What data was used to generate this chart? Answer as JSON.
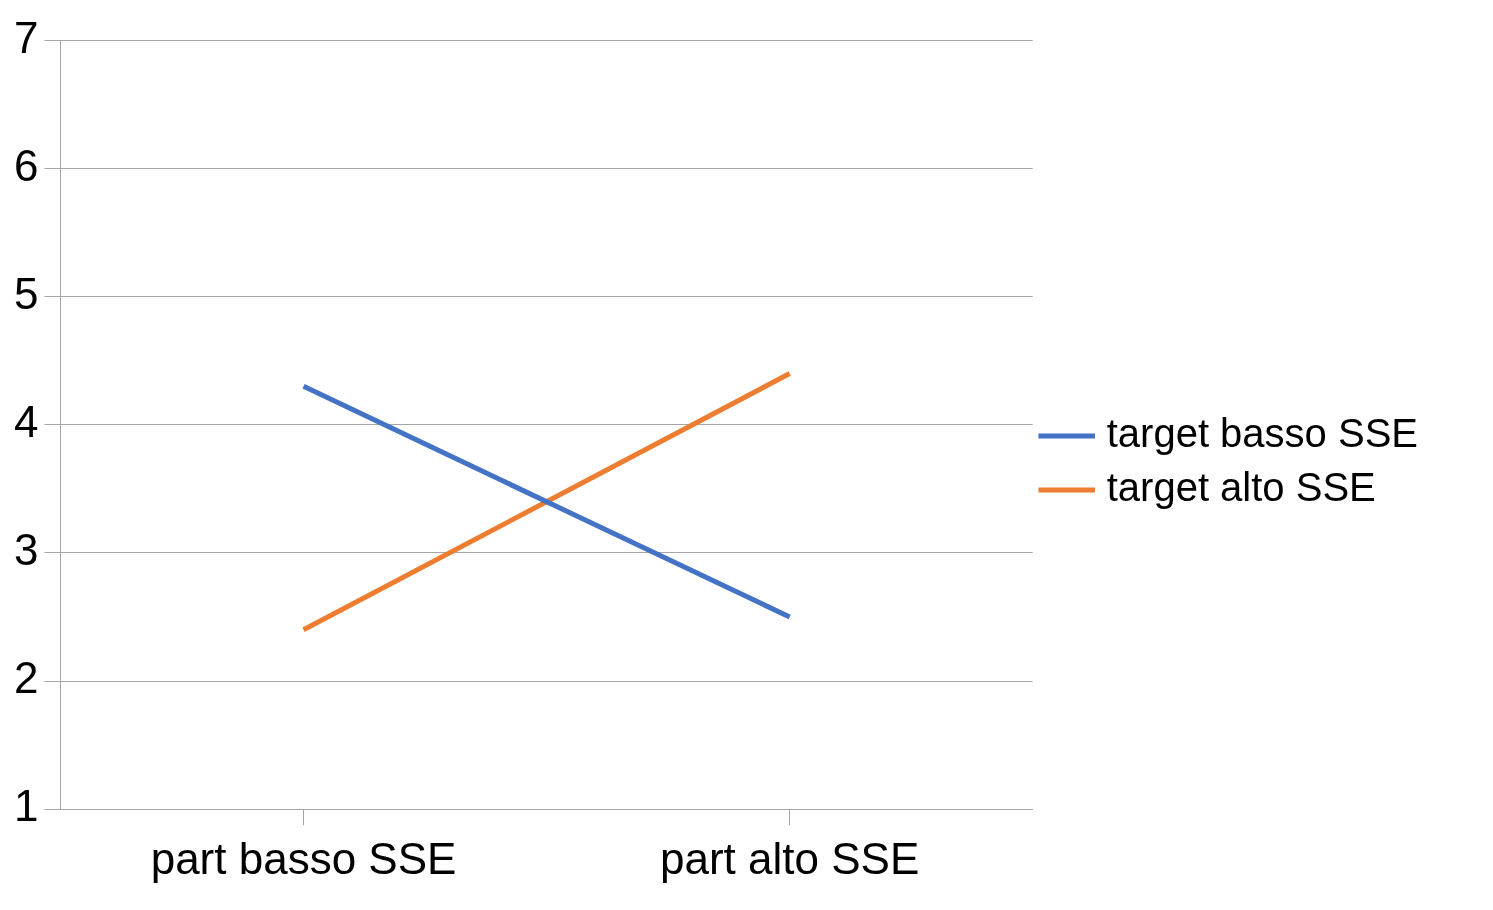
{
  "chart_data": {
    "type": "line",
    "categories": [
      "part basso SSE",
      "part alto SSE"
    ],
    "series": [
      {
        "name": "target basso SSE",
        "color": "#4472c4",
        "values": [
          4.3,
          2.5
        ]
      },
      {
        "name": "target alto SSE",
        "color": "#ed7d31",
        "values": [
          2.4,
          4.4
        ]
      }
    ],
    "ylim": [
      1,
      7
    ],
    "yticks": [
      1,
      2,
      3,
      4,
      5,
      6,
      7
    ],
    "grid": "y",
    "legend": "right",
    "marker": "none",
    "line_style": "solid"
  }
}
